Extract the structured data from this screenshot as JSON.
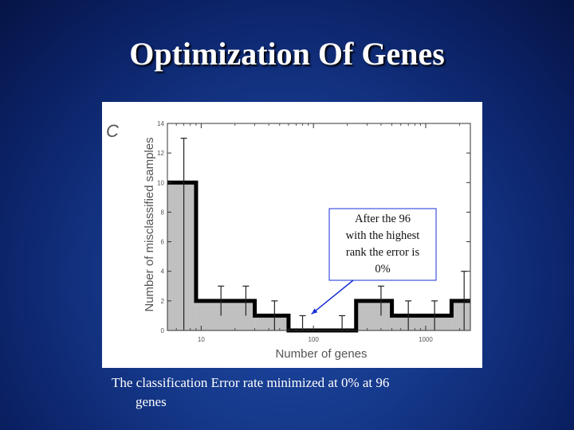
{
  "slide": {
    "title": "Optimization Of Genes",
    "caption_line1": "The classification Error rate minimized at 0% at 96",
    "caption_line2": "genes"
  },
  "chart_data": {
    "type": "step",
    "panel_label": "C",
    "xlabel": "Number of genes",
    "ylabel": "Number of misclassified samples",
    "xscale": "log",
    "xlim": [
      5,
      2500
    ],
    "ylim": [
      0,
      14
    ],
    "xticks": [
      10,
      100,
      1000
    ],
    "xtick_labels": [
      "10",
      "100",
      "1000"
    ],
    "yticks": [
      0,
      2,
      4,
      6,
      8,
      10,
      12,
      14
    ],
    "ytick_labels": [
      "0",
      "2",
      "4",
      "6",
      "8",
      "10",
      "12",
      "14"
    ],
    "grid": false,
    "bins": [
      {
        "x0": 5,
        "x1": 9,
        "value": 10,
        "err_hi": 13,
        "err_lo": 0
      },
      {
        "x0": 9,
        "x1": 30,
        "value": 2,
        "err_hi": 3,
        "err_lo": 1
      },
      {
        "x0": 30,
        "x1": 60,
        "value": 1,
        "err_hi": 2,
        "err_lo": 0
      },
      {
        "x0": 60,
        "x1": 240,
        "value": 0,
        "err_hi": 1,
        "err_lo": 0
      },
      {
        "x0": 240,
        "x1": 500,
        "value": 2,
        "err_hi": 3,
        "err_lo": 1
      },
      {
        "x0": 500,
        "x1": 1700,
        "value": 1,
        "err_hi": 2,
        "err_lo": 0
      },
      {
        "x0": 1700,
        "x1": 2500,
        "value": 2,
        "err_hi": 4,
        "err_lo": 0
      }
    ],
    "error_bar_x": [
      7,
      15,
      25,
      45,
      80,
      180,
      400,
      700,
      1200,
      2200
    ],
    "annotation": {
      "text_lines": [
        "After the 96",
        "with the highest",
        "rank the error is",
        "0%"
      ],
      "arrow_target_x": 96,
      "arrow_target_y": 1,
      "color": "#1a2fd6"
    },
    "fill_color": "#c0c0c0",
    "line_color": "#000000"
  }
}
